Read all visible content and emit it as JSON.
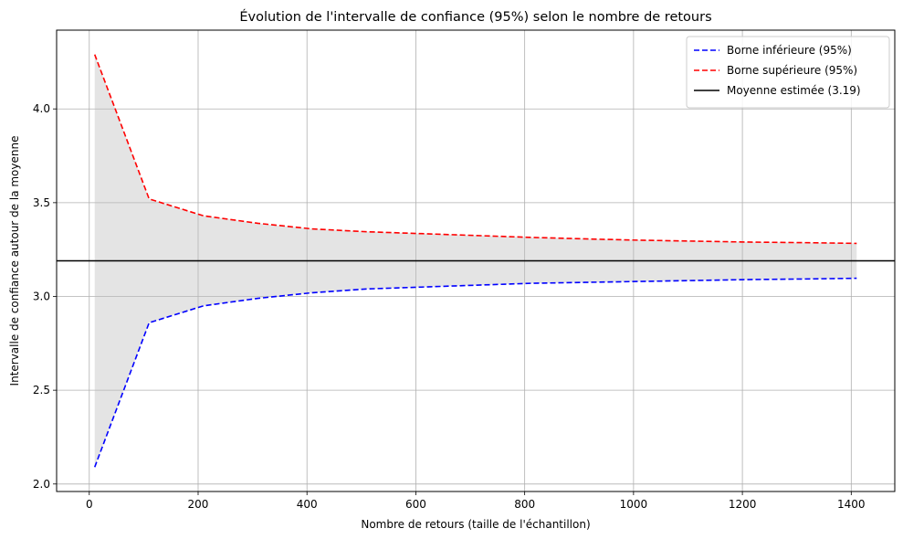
{
  "chart_data": {
    "type": "line",
    "title": "Évolution de l'intervalle de confiance (95%) selon le nombre de retours",
    "xlabel": "Nombre de retours (taille de l'échantillon)",
    "ylabel": "Intervalle de confiance autour de la moyenne",
    "xlim": [
      -60,
      1480
    ],
    "ylim": [
      1.96,
      4.42
    ],
    "x_ticks": [
      0,
      200,
      400,
      600,
      800,
      1000,
      1200,
      1400
    ],
    "y_ticks": [
      2.0,
      2.5,
      3.0,
      3.5,
      4.0
    ],
    "x_tick_labels": [
      "0",
      "200",
      "400",
      "600",
      "800",
      "1000",
      "1200",
      "1400"
    ],
    "y_tick_labels": [
      "2.0",
      "2.5",
      "3.0",
      "3.5",
      "4.0"
    ],
    "grid": true,
    "legend_position": "top-right",
    "x": [
      10,
      110,
      210,
      310,
      410,
      510,
      610,
      710,
      810,
      910,
      1010,
      1110,
      1210,
      1310,
      1410
    ],
    "series": [
      {
        "name": "Borne inférieure (95%)",
        "color": "#0000ff",
        "style": "dashed",
        "values": [
          2.09,
          2.86,
          2.95,
          2.99,
          3.02,
          3.04,
          3.05,
          3.06,
          3.07,
          3.075,
          3.08,
          3.085,
          3.09,
          3.093,
          3.097
        ]
      },
      {
        "name": "Borne supérieure (95%)",
        "color": "#ff0000",
        "style": "dashed",
        "values": [
          4.29,
          3.52,
          3.43,
          3.39,
          3.36,
          3.345,
          3.335,
          3.325,
          3.315,
          3.307,
          3.3,
          3.295,
          3.29,
          3.287,
          3.283
        ]
      },
      {
        "name": "Moyenne estimée (3.19)",
        "color": "#000000",
        "style": "solid",
        "constant": 3.19
      }
    ],
    "fill_between": {
      "color": "#bbbbbb",
      "opacity": 0.4
    }
  }
}
